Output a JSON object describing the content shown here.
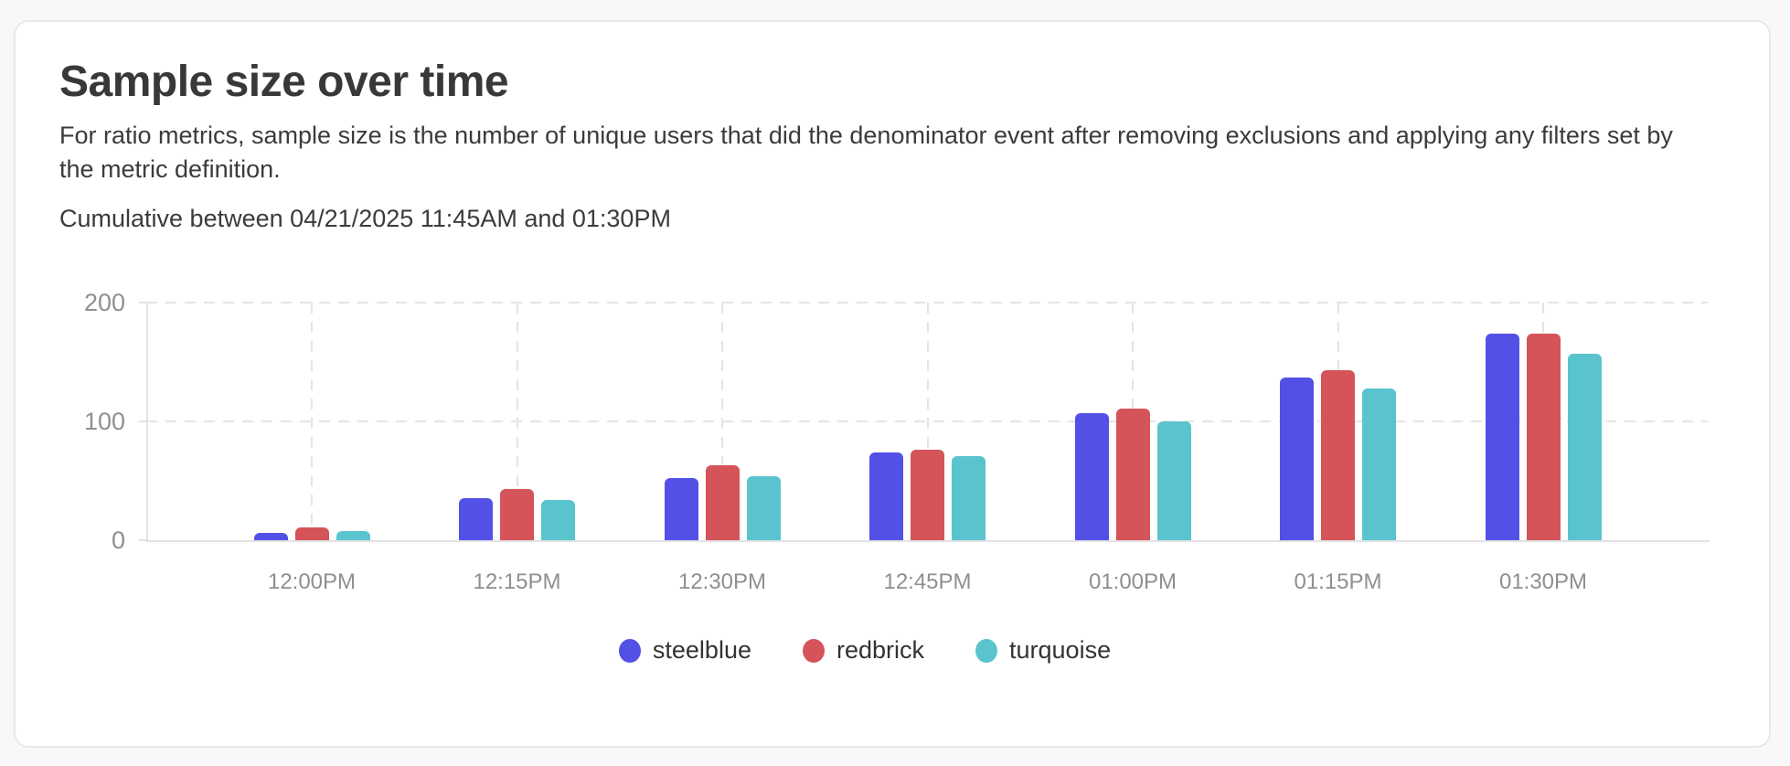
{
  "card": {
    "title": "Sample size over time",
    "description": "For ratio metrics, sample size is the number of unique users that did the denominator event after removing exclusions and applying any filters set by the metric definition.",
    "subtitle": "Cumulative between 04/21/2025 11:45AM and 01:30PM"
  },
  "chart_data": {
    "type": "bar",
    "title": "Sample size over time",
    "categories": [
      "12:00PM",
      "12:15PM",
      "12:30PM",
      "12:45PM",
      "01:00PM",
      "01:15PM",
      "01:30PM"
    ],
    "series": [
      {
        "name": "steelblue",
        "color": "#5350e6",
        "values": [
          6,
          35,
          52,
          74,
          107,
          137,
          174
        ]
      },
      {
        "name": "redbrick",
        "color": "#d45459",
        "values": [
          11,
          43,
          63,
          76,
          111,
          143,
          174
        ]
      },
      {
        "name": "turquoise",
        "color": "#5ac4ce",
        "values": [
          8,
          34,
          54,
          71,
          100,
          128,
          157
        ]
      }
    ],
    "xlabel": "",
    "ylabel": "",
    "ylim": [
      0,
      200
    ],
    "yticks": [
      0,
      100,
      200
    ],
    "grid": "dashed",
    "legend_position": "bottom",
    "axis_color": "#e2e2e5",
    "gridline_color": "#e4e4e7",
    "tick_label_color": "#8f8f8f"
  }
}
